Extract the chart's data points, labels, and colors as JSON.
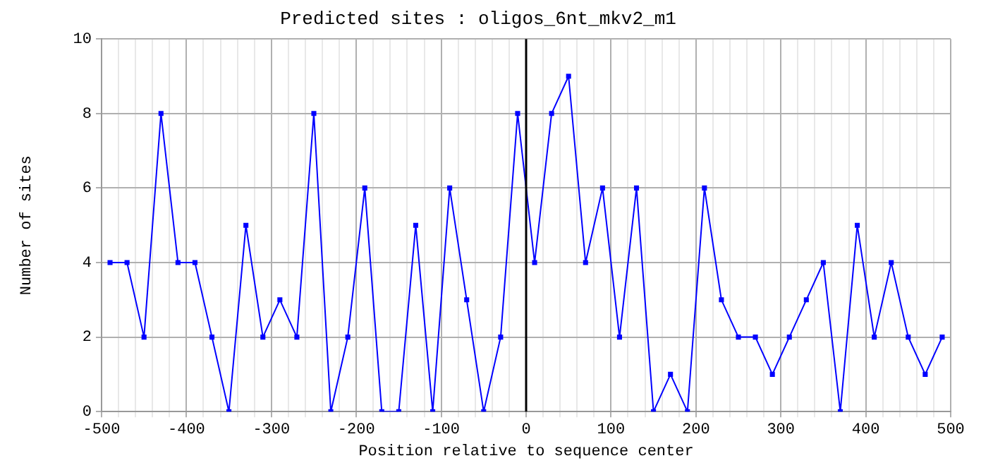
{
  "chart_data": {
    "type": "line",
    "title": "Predicted sites : oligos_6nt_mkv2_m1",
    "xlabel": "Position relative to sequence center",
    "ylabel": "Number of sites",
    "x": [
      -490,
      -470,
      -450,
      -430,
      -410,
      -390,
      -370,
      -350,
      -330,
      -310,
      -290,
      -270,
      -250,
      -230,
      -210,
      -190,
      -170,
      -150,
      -130,
      -110,
      -90,
      -70,
      -50,
      -30,
      -10,
      10,
      30,
      50,
      70,
      90,
      110,
      130,
      150,
      170,
      190,
      210,
      230,
      250,
      270,
      290,
      310,
      330,
      350,
      370,
      390,
      410,
      430,
      450,
      470,
      490
    ],
    "series": [
      {
        "color": "#0000ff",
        "values": [
          4,
          4,
          2,
          8,
          4,
          4,
          2,
          0,
          5,
          2,
          3,
          2,
          8,
          0,
          2,
          6,
          0,
          0,
          5,
          0,
          6,
          3,
          0,
          2,
          8,
          4,
          8,
          9,
          4,
          6,
          2,
          6,
          0,
          1,
          0,
          6,
          3,
          2,
          2,
          1,
          2,
          3,
          4,
          0,
          5,
          2,
          4,
          2,
          1,
          2
        ]
      }
    ],
    "xlim": [
      -500,
      500
    ],
    "xticks": [
      -500,
      {
        "value": -480,
        "label": null
      },
      {
        "value": -460,
        "label": null
      },
      {
        "value": -440,
        "label": null
      },
      {
        "value": -420,
        "label": null
      },
      -400,
      {
        "value": -380,
        "label": null
      },
      {
        "value": -360,
        "label": null
      },
      {
        "value": -340,
        "label": null
      },
      {
        "value": -320,
        "label": null
      },
      -300,
      {
        "value": -280,
        "label": null
      },
      {
        "value": -260,
        "label": null
      },
      {
        "value": -240,
        "label": null
      },
      {
        "value": -220,
        "label": null
      },
      -200,
      {
        "value": -180,
        "label": null
      },
      {
        "value": -160,
        "label": null
      },
      {
        "value": -140,
        "label": null
      },
      {
        "value": -120,
        "label": null
      },
      -100,
      {
        "value": -80,
        "label": null
      },
      {
        "value": -60,
        "label": null
      },
      {
        "value": -40,
        "label": null
      },
      {
        "value": -20,
        "label": null
      },
      0,
      {
        "value": 20,
        "label": null
      },
      {
        "value": 40,
        "label": null
      },
      {
        "value": 60,
        "label": null
      },
      {
        "value": 80,
        "label": null
      },
      100,
      {
        "value": 120,
        "label": null
      },
      {
        "value": 140,
        "label": null
      },
      {
        "value": 160,
        "label": null
      },
      {
        "value": 180,
        "label": null
      },
      200,
      {
        "value": 220,
        "label": null
      },
      {
        "value": 240,
        "label": null
      },
      {
        "value": 260,
        "label": null
      },
      {
        "value": 280,
        "label": null
      },
      300,
      {
        "value": 320,
        "label": null
      },
      {
        "value": 340,
        "label": null
      },
      {
        "value": 360,
        "label": null
      },
      {
        "value": 380,
        "label": null
      },
      400,
      {
        "value": 420,
        "label": null
      },
      {
        "value": 440,
        "label": null
      },
      {
        "value": 460,
        "label": null
      },
      {
        "value": 480,
        "label": null
      },
      500
    ],
    "ylim": [
      0,
      10
    ],
    "yticks": [
      0,
      2,
      4,
      6,
      8,
      10
    ],
    "ref_lines": [
      {
        "axis": "x",
        "value": 0,
        "color": "#000000"
      }
    ],
    "grid": true,
    "marker": "square",
    "line_style": "solid",
    "legend": false
  }
}
